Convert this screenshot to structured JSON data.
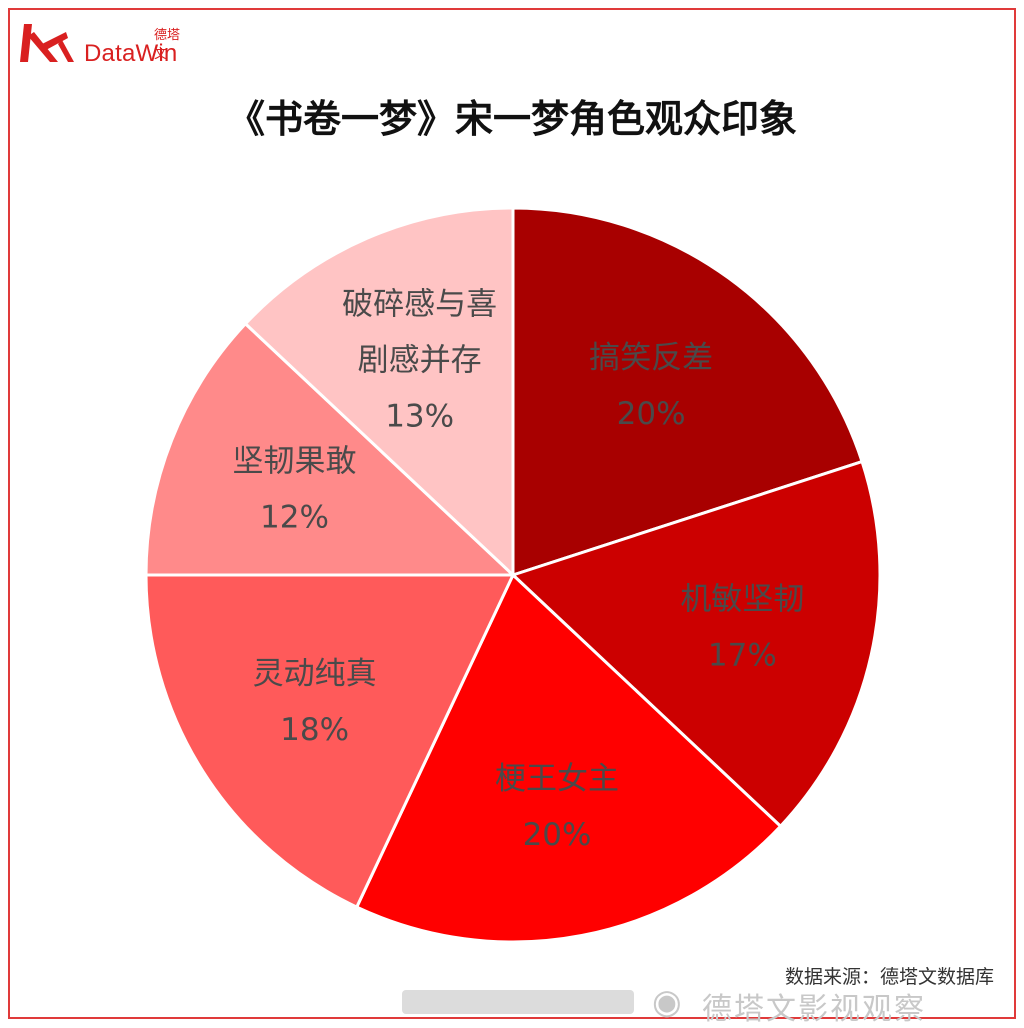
{
  "logo": {
    "cn_text": "德塔文",
    "en_text": "DataWin",
    "color": "#d92020"
  },
  "title": "《书卷一梦》宋一梦角色观众印象",
  "chart_data": {
    "type": "pie",
    "title": "《书卷一梦》宋一梦角色观众印象",
    "slices": [
      {
        "label_lines": [
          "搞笑反差"
        ],
        "value": 20,
        "pct": "20%",
        "color": "#a80000"
      },
      {
        "label_lines": [
          "机敏坚韧"
        ],
        "value": 17,
        "pct": "17%",
        "color": "#cc0000"
      },
      {
        "label_lines": [
          "梗王女主"
        ],
        "value": 20,
        "pct": "20%",
        "color": "#ff0000"
      },
      {
        "label_lines": [
          "灵动纯真"
        ],
        "value": 18,
        "pct": "18%",
        "color": "#ff5a5a"
      },
      {
        "label_lines": [
          "坚韧果敢"
        ],
        "value": 12,
        "pct": "12%",
        "color": "#ff8a8a"
      },
      {
        "label_lines": [
          "破碎感与喜",
          "剧感并存"
        ],
        "value": 13,
        "pct": "13%",
        "color": "#ffc4c4"
      }
    ],
    "start": "12 o'clock",
    "direction": "clockwise"
  },
  "source": "数据来源：德塔文数据库",
  "watermark": {
    "text": "德塔文影视观察"
  }
}
